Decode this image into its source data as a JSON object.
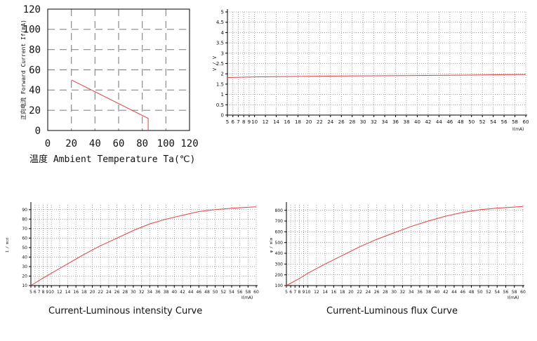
{
  "colors": {
    "series": "#e04040",
    "grid": "#8a8a8a",
    "frame": "#000000",
    "text": "#111111"
  },
  "chart_data": [
    {
      "id": "derating",
      "type": "line",
      "title": "",
      "xlabel": "温度 Ambient Temperature Ta(℃)",
      "ylabel": "正向电流 Forward Current If(mA)",
      "xlim": [
        0,
        120
      ],
      "ylim": [
        0,
        120
      ],
      "xticks": [
        "0",
        "20",
        "40",
        "60",
        "80",
        "100",
        "120"
      ],
      "yticks": [
        "0",
        "20",
        "40",
        "60",
        "80",
        "100",
        "120"
      ],
      "grid": "dashed",
      "series": [
        {
          "x": [
            20,
            85,
            85
          ],
          "y": [
            50,
            12,
            0
          ]
        }
      ]
    },
    {
      "id": "voltage",
      "type": "line",
      "title": "",
      "xlabel": "I(mA)",
      "ylabel": "V / V",
      "xlim": [
        5,
        60
      ],
      "ylim": [
        0,
        5
      ],
      "xticks": [
        "5",
        "6",
        "7",
        "8",
        "9",
        "10",
        "12",
        "14",
        "16",
        "18",
        "20",
        "22",
        "24",
        "26",
        "28",
        "30",
        "32",
        "34",
        "36",
        "38",
        "40",
        "42",
        "44",
        "46",
        "48",
        "50",
        "52",
        "54",
        "56",
        "58",
        "60"
      ],
      "yticks": [
        "0",
        "0.5",
        "1",
        "1.5",
        "2",
        "2.5",
        "3",
        "3.5",
        "4",
        "4.5",
        "5"
      ],
      "grid": "dotted",
      "series": [
        {
          "x": [
            5,
            10,
            20,
            30,
            40,
            50,
            56,
            60
          ],
          "y": [
            1.82,
            1.85,
            1.88,
            1.9,
            1.92,
            1.94,
            1.96,
            1.97
          ]
        }
      ]
    },
    {
      "id": "intensity",
      "type": "line",
      "title": "Current-Luminous intensity Curve",
      "xlabel": "I(mA)",
      "ylabel": "I / mcd",
      "xlim": [
        5,
        60
      ],
      "ylim": [
        10,
        95
      ],
      "xticks": [
        "5",
        "6",
        "7",
        "8",
        "9",
        "10",
        "12",
        "14",
        "16",
        "18",
        "20",
        "22",
        "24",
        "26",
        "28",
        "30",
        "32",
        "34",
        "36",
        "38",
        "40",
        "42",
        "44",
        "46",
        "48",
        "50",
        "52",
        "54",
        "56",
        "58",
        "60"
      ],
      "yticks": [
        "10",
        "20",
        "30",
        "40",
        "50",
        "60",
        "70",
        "80",
        "90"
      ],
      "grid": "dotted",
      "series": [
        {
          "x": [
            5,
            8,
            10,
            14,
            18,
            22,
            26,
            30,
            34,
            38,
            42,
            46,
            50,
            54,
            58,
            60
          ],
          "y": [
            10,
            18,
            23,
            33,
            43,
            52,
            60,
            68,
            75,
            80,
            84,
            88,
            90,
            91.5,
            92.5,
            93
          ]
        }
      ]
    },
    {
      "id": "flux",
      "type": "line",
      "title": "Current-Luminous flux Curve",
      "xlabel": "I(mA)",
      "ylabel": "φ / mlm",
      "xlim": [
        5,
        60
      ],
      "ylim": [
        100,
        850
      ],
      "xticks": [
        "5",
        "6",
        "7",
        "8",
        "9",
        "10",
        "12",
        "14",
        "16",
        "18",
        "20",
        "22",
        "24",
        "26",
        "28",
        "30",
        "32",
        "34",
        "36",
        "38",
        "40",
        "42",
        "44",
        "46",
        "48",
        "50",
        "52",
        "54",
        "56",
        "58",
        "60"
      ],
      "yticks": [
        "100",
        "200",
        "300",
        "400",
        "500",
        "600",
        "700",
        "800"
      ],
      "grid": "dotted",
      "series": [
        {
          "x": [
            5,
            8,
            10,
            14,
            18,
            22,
            26,
            30,
            34,
            38,
            42,
            46,
            50,
            54,
            58,
            60
          ],
          "y": [
            100,
            165,
            215,
            300,
            380,
            460,
            530,
            590,
            650,
            700,
            745,
            780,
            805,
            820,
            830,
            835
          ]
        }
      ]
    }
  ]
}
